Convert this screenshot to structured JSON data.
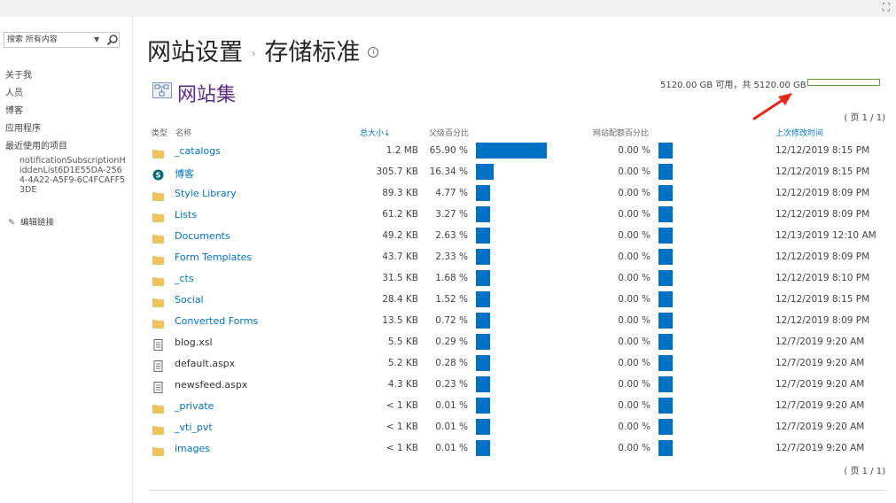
{
  "topbar": {
    "focus_icon": "focus-mode-icon"
  },
  "search": {
    "placeholder": "搜索 所有内容",
    "dropdown_icon": "chevron-down-icon",
    "icon": "search-icon"
  },
  "nav": {
    "items": [
      "关于我",
      "人员",
      "博客",
      "应用程序",
      "最近使用的项目"
    ],
    "recent_item": "notificationSubscriptionHiddenList6D1E55DA-2564-4A22-A5F9-6C4FCAFF53DE",
    "edit_links": "编辑链接"
  },
  "title": {
    "part1": "网站设置",
    "separator": "›",
    "part2": "存储标准",
    "info": "i"
  },
  "site_collection": {
    "label": "网站集"
  },
  "quota": {
    "text": "5120.00 GB 可用，共 5120.00 GB",
    "used_fraction": 0.0,
    "color": "#5c9e3a"
  },
  "pager": {
    "top": "( 页 1 / 1)",
    "bottom": "( 页 1 / 1)"
  },
  "columns": {
    "type": "类型",
    "name": "名称",
    "size": "总大小↓",
    "parent_pct": "父级百分比",
    "quota_pct": "网站配额百分比",
    "modified": "上次修改时间"
  },
  "colors": {
    "accent": "#0072c6",
    "title": "#262626",
    "site_collection": "#5b2b86"
  },
  "rows": [
    {
      "icon": "folder-icon",
      "name": "_catalogs",
      "size": "1.2 MB",
      "parent_pct": "65.90 %",
      "parent_value": 65.9,
      "quota_pct": "0.00 %",
      "modified": "12/12/2019 8:15 PM",
      "link": true
    },
    {
      "icon": "sharepoint-icon",
      "name": "博客",
      "size": "305.7 KB",
      "parent_pct": "16.34 %",
      "parent_value": 16.34,
      "quota_pct": "0.00 %",
      "modified": "12/12/2019 8:15 PM",
      "link": true
    },
    {
      "icon": "folder-icon",
      "name": "Style Library",
      "size": "89.3 KB",
      "parent_pct": "4.77 %",
      "parent_value": 4.77,
      "quota_pct": "0.00 %",
      "modified": "12/12/2019 8:09 PM",
      "link": true
    },
    {
      "icon": "folder-icon",
      "name": "Lists",
      "size": "61.2 KB",
      "parent_pct": "3.27 %",
      "parent_value": 3.27,
      "quota_pct": "0.00 %",
      "modified": "12/12/2019 8:09 PM",
      "link": true
    },
    {
      "icon": "folder-icon",
      "name": "Documents",
      "size": "49.2 KB",
      "parent_pct": "2.63 %",
      "parent_value": 2.63,
      "quota_pct": "0.00 %",
      "modified": "12/13/2019 12:10 AM",
      "link": true
    },
    {
      "icon": "folder-icon",
      "name": "Form Templates",
      "size": "43.7 KB",
      "parent_pct": "2.33 %",
      "parent_value": 2.33,
      "quota_pct": "0.00 %",
      "modified": "12/12/2019 8:09 PM",
      "link": true
    },
    {
      "icon": "folder-icon",
      "name": "_cts",
      "size": "31.5 KB",
      "parent_pct": "1.68 %",
      "parent_value": 1.68,
      "quota_pct": "0.00 %",
      "modified": "12/12/2019 8:10 PM",
      "link": true
    },
    {
      "icon": "folder-icon",
      "name": "Social",
      "size": "28.4 KB",
      "parent_pct": "1.52 %",
      "parent_value": 1.52,
      "quota_pct": "0.00 %",
      "modified": "12/12/2019 8:15 PM",
      "link": true
    },
    {
      "icon": "folder-icon",
      "name": "Converted Forms",
      "size": "13.5 KB",
      "parent_pct": "0.72 %",
      "parent_value": 0.72,
      "quota_pct": "0.00 %",
      "modified": "12/12/2019 8:09 PM",
      "link": true
    },
    {
      "icon": "file-icon",
      "name": "blog.xsl",
      "size": "5.5 KB",
      "parent_pct": "0.29 %",
      "parent_value": 0.29,
      "quota_pct": "0.00 %",
      "modified": "12/7/2019 9:20 AM",
      "link": false
    },
    {
      "icon": "file-icon",
      "name": "default.aspx",
      "size": "5.2 KB",
      "parent_pct": "0.28 %",
      "parent_value": 0.28,
      "quota_pct": "0.00 %",
      "modified": "12/7/2019 9:20 AM",
      "link": false
    },
    {
      "icon": "file-icon",
      "name": "newsfeed.aspx",
      "size": "4.3 KB",
      "parent_pct": "0.23 %",
      "parent_value": 0.23,
      "quota_pct": "0.00 %",
      "modified": "12/7/2019 9:20 AM",
      "link": false
    },
    {
      "icon": "folder-icon",
      "name": "_private",
      "size": "< 1 KB",
      "parent_pct": "0.01 %",
      "parent_value": 0.01,
      "quota_pct": "0.00 %",
      "modified": "12/7/2019 9:20 AM",
      "link": true
    },
    {
      "icon": "folder-icon",
      "name": "_vti_pvt",
      "size": "< 1 KB",
      "parent_pct": "0.01 %",
      "parent_value": 0.01,
      "quota_pct": "0.00 %",
      "modified": "12/7/2019 9:20 AM",
      "link": true
    },
    {
      "icon": "folder-icon",
      "name": "images",
      "size": "< 1 KB",
      "parent_pct": "0.01 %",
      "parent_value": 0.01,
      "quota_pct": "0.00 %",
      "modified": "12/7/2019 9:20 AM",
      "link": true
    }
  ]
}
